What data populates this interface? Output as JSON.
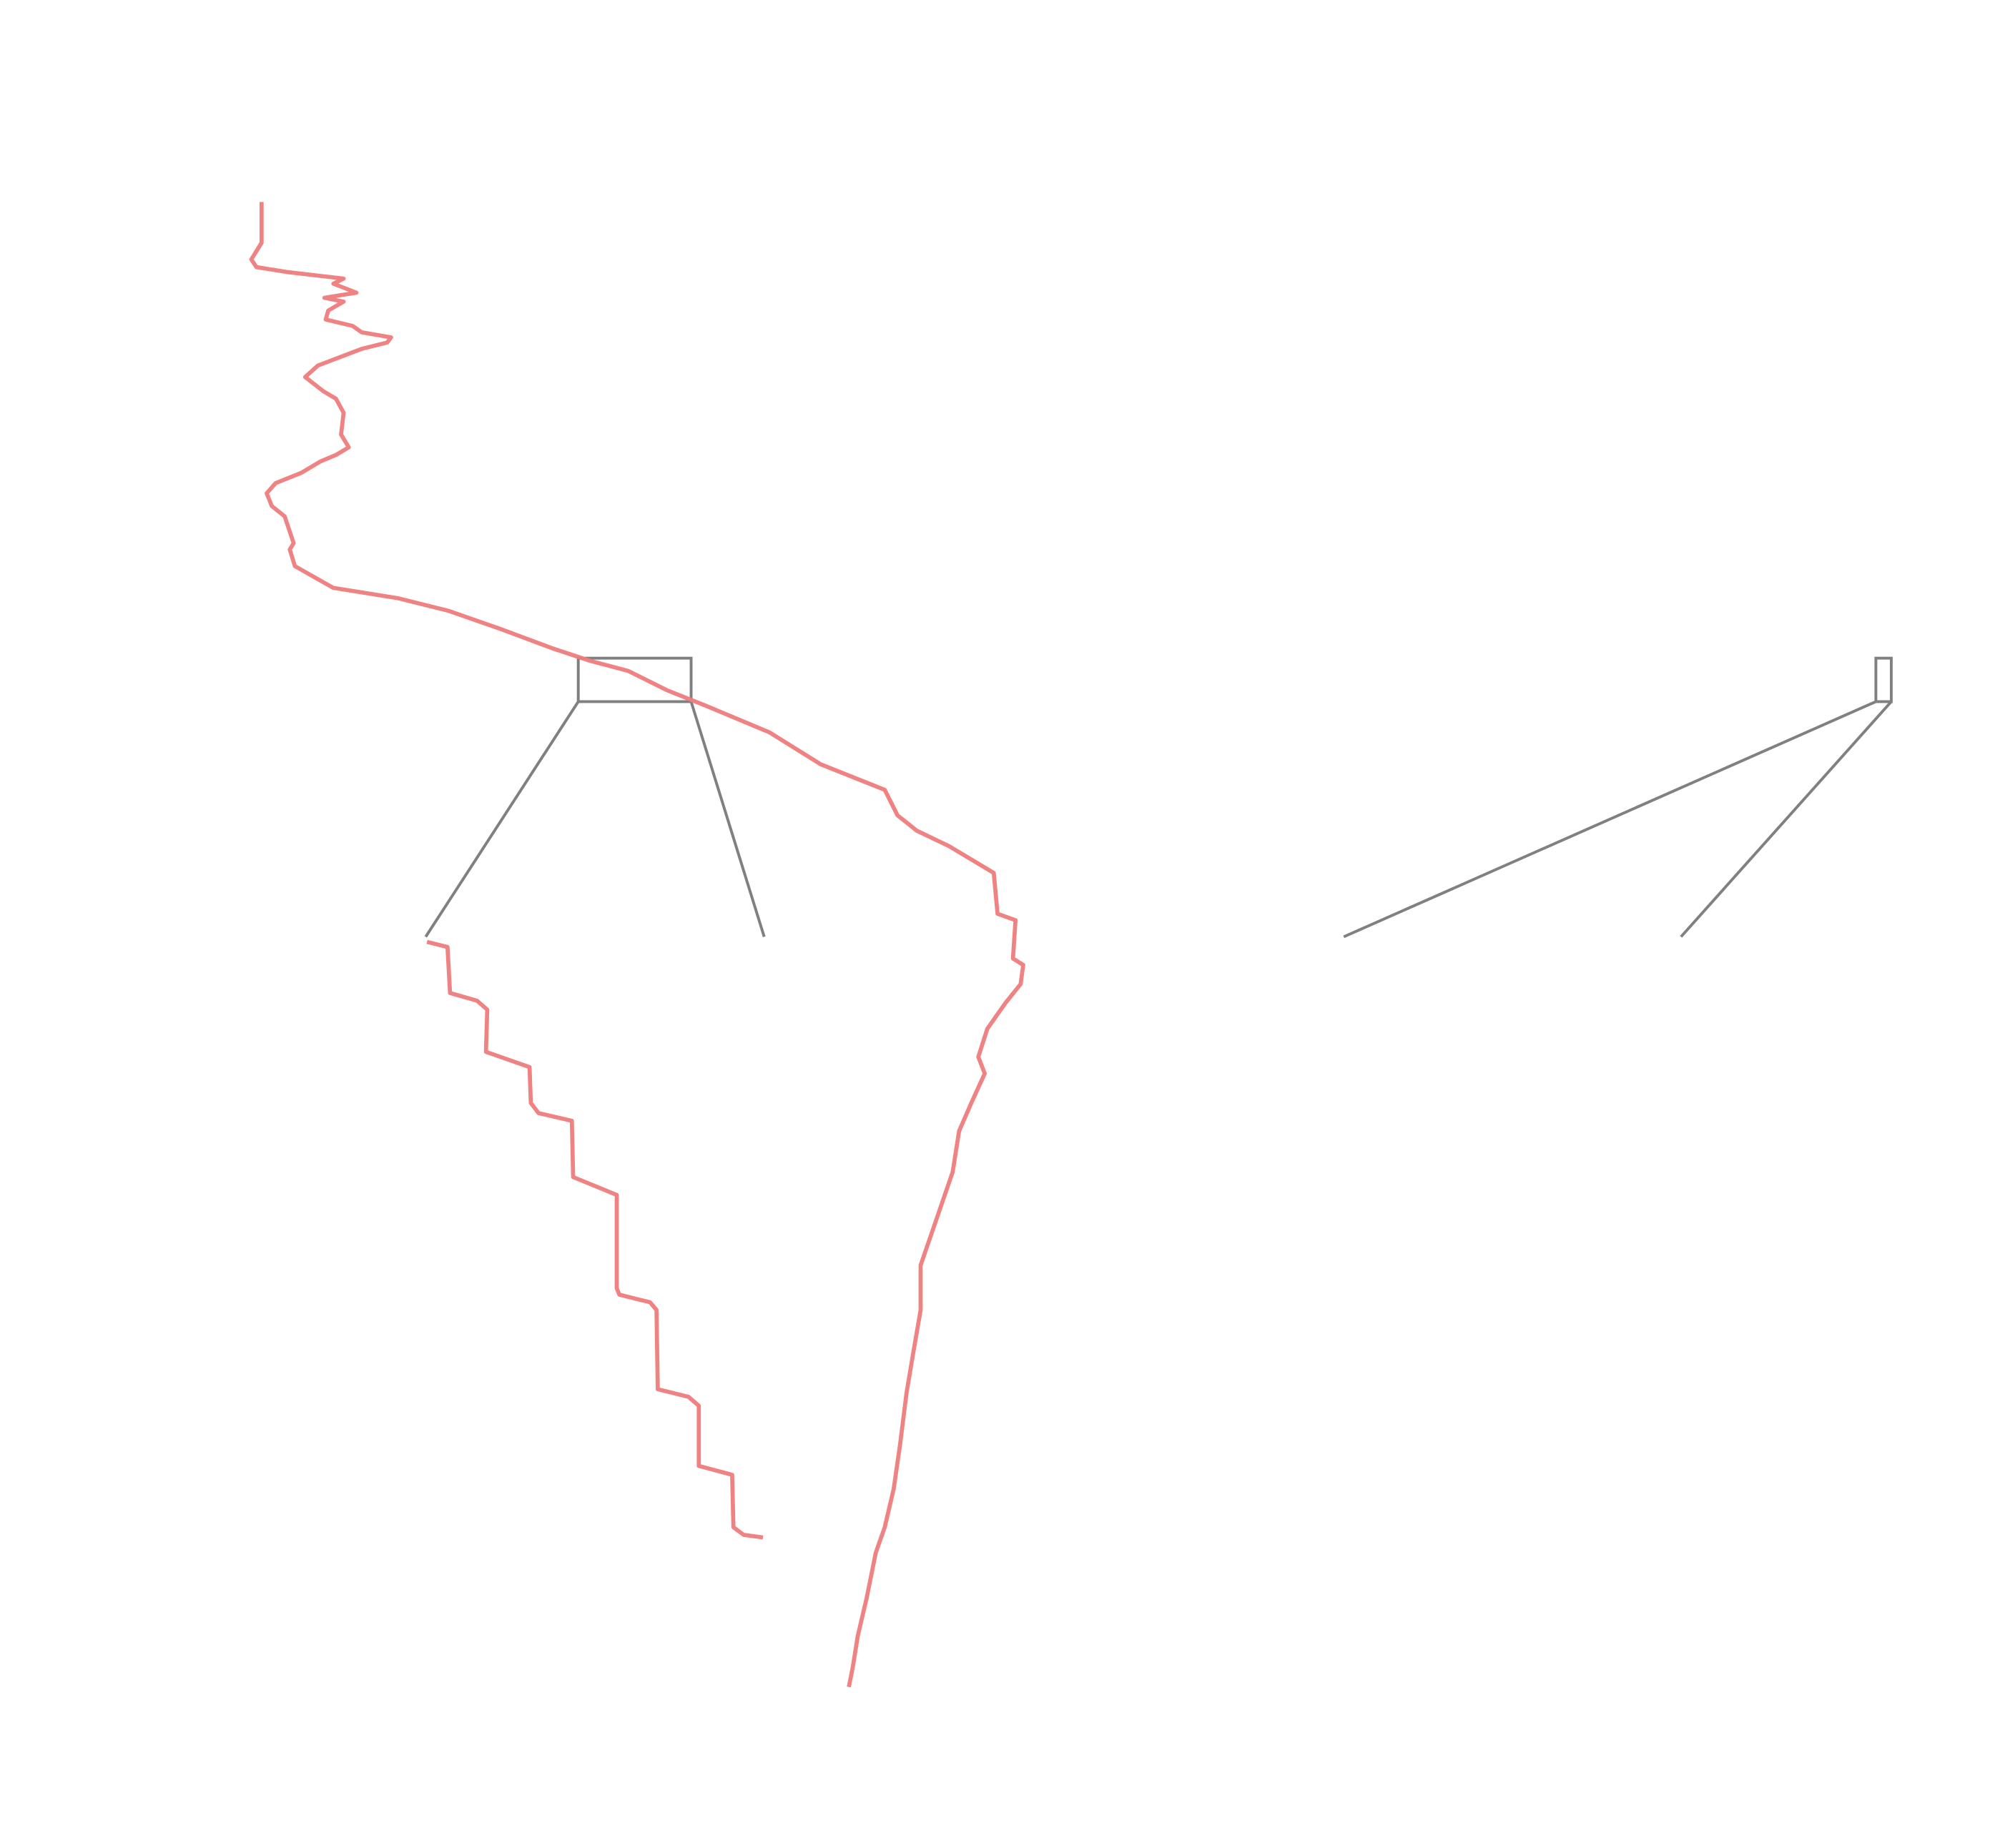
{
  "chart_data": {
    "type": "line",
    "xlim": [
      0,
      1552
    ],
    "ylim": [
      1446,
      0
    ],
    "series": [
      {
        "color": "#ee7b7b",
        "x": [
          204,
          204,
          196,
          200,
          225,
          268,
          260,
          278,
          253,
          268,
          256,
          254,
          275,
          282,
          305,
          302,
          282,
          248,
          238,
          252,
          262,
          268,
          266,
          272,
          262,
          250,
          235,
          215,
          208,
          212,
          222,
          229,
          226,
          230,
          260,
          310,
          350,
          390,
          430,
          460,
          490,
          520,
          550,
          600,
          640,
          690,
          700,
          715,
          740,
          775,
          778,
          792,
          790,
          798,
          796,
          784,
          770,
          763,
          768,
          758,
          748,
          743,
          730,
          718,
          718,
          712,
          707,
          702,
          697,
          690,
          683,
          676,
          669,
          665,
          662
        ],
        "values": [
          158,
          190,
          203,
          209,
          213,
          218,
          222,
          229,
          233,
          236,
          243,
          250,
          255,
          260,
          264,
          268,
          273,
          286,
          295,
          306,
          312,
          323,
          340,
          350,
          356,
          361,
          370,
          378,
          386,
          396,
          404,
          425,
          430,
          443,
          460,
          468,
          478,
          492,
          507,
          517,
          525,
          540,
          552,
          573,
          598,
          618,
          638,
          650,
          662,
          683,
          715,
          720,
          750,
          755,
          770,
          785,
          805,
          827,
          840,
          862,
          885,
          917,
          955,
          990,
          1025,
          1060,
          1090,
          1130,
          1165,
          1195,
          1215,
          1250,
          1280,
          1305,
          1320
        ]
      },
      {
        "color": "#ee7b7b",
        "x": [
          333,
          349,
          351,
          372,
          380,
          379,
          413,
          414,
          420,
          446,
          447,
          481,
          481,
          483,
          507,
          512,
          513,
          537,
          545,
          545,
          571,
          572,
          580,
          595
        ],
        "values": [
          737,
          741,
          777,
          783,
          790,
          823,
          835,
          863,
          871,
          877,
          921,
          935,
          1008,
          1013,
          1019,
          1025,
          1087,
          1093,
          1100,
          1147,
          1154,
          1195,
          1201,
          1203
        ]
      }
    ]
  }
}
